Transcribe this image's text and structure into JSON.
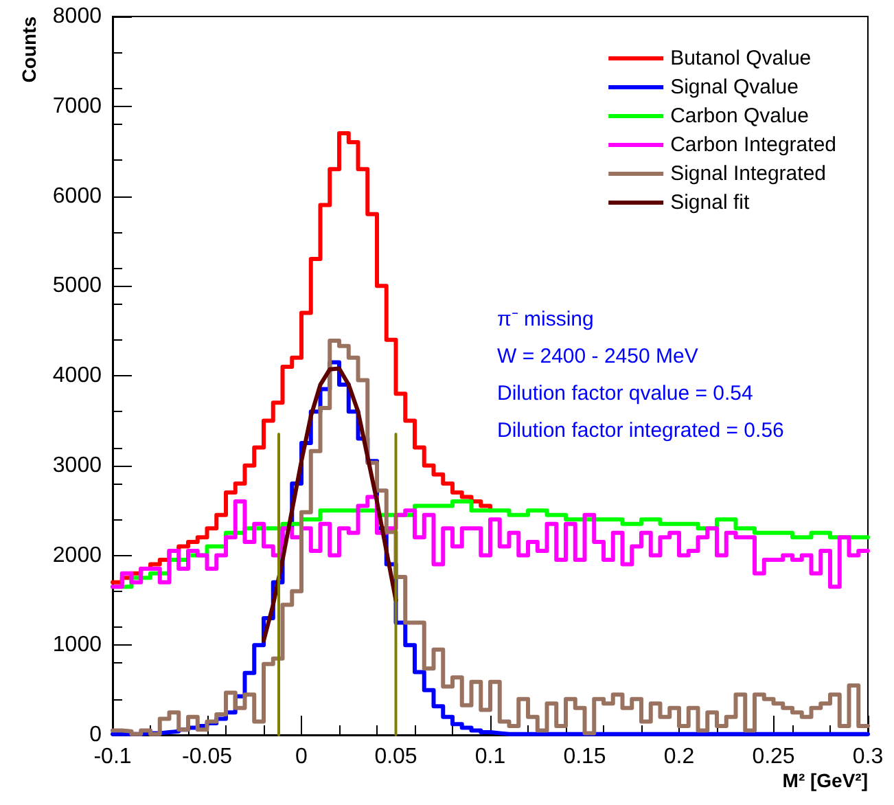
{
  "chart_data": {
    "type": "step",
    "xlabel": "M² [GeV²]",
    "ylabel": "Counts",
    "xlim": [
      -0.1,
      0.3
    ],
    "xticks": [
      -0.1,
      -0.05,
      0,
      0.05,
      0.1,
      0.15,
      0.2,
      0.25,
      0.3
    ],
    "ylim": [
      0,
      8000
    ],
    "yticks": [
      0,
      1000,
      2000,
      3000,
      4000,
      5000,
      6000,
      7000,
      8000
    ],
    "legend": "top right",
    "marker": "none",
    "annotations": [
      "π⁻ missing",
      "W = 2400 - 2450 MeV",
      "Dilution factor qvalue = 0.54",
      "Dilution factor integrated = 0.56"
    ],
    "series": [
      {
        "name": "Butanol Qvalue",
        "color": "#ff0000",
        "x": [
          -0.1,
          -0.095,
          -0.09,
          -0.085,
          -0.08,
          -0.075,
          -0.07,
          -0.065,
          -0.06,
          -0.055,
          -0.05,
          -0.045,
          -0.04,
          -0.035,
          -0.03,
          -0.025,
          -0.02,
          -0.015,
          -0.01,
          -0.005,
          0,
          0.005,
          0.01,
          0.015,
          0.02,
          0.025,
          0.03,
          0.035,
          0.04,
          0.045,
          0.05,
          0.055,
          0.06,
          0.065,
          0.07,
          0.075,
          0.08,
          0.085,
          0.09,
          0.095,
          0.1
        ],
        "values": [
          1700,
          1750,
          1800,
          1850,
          1900,
          1950,
          2050,
          2100,
          2150,
          2200,
          2300,
          2450,
          2700,
          2800,
          3000,
          3200,
          3500,
          3700,
          4100,
          4200,
          4700,
          5300,
          5900,
          6300,
          6700,
          6600,
          6300,
          5800,
          5000,
          4400,
          3800,
          3500,
          3200,
          3000,
          2900,
          2800,
          2700,
          2650,
          2600,
          2550,
          2500
        ]
      },
      {
        "name": "Signal Qvalue",
        "color": "#0000ff",
        "x": [
          -0.1,
          -0.095,
          -0.09,
          -0.085,
          -0.08,
          -0.075,
          -0.07,
          -0.065,
          -0.06,
          -0.055,
          -0.05,
          -0.045,
          -0.04,
          -0.035,
          -0.03,
          -0.025,
          -0.02,
          -0.015,
          -0.01,
          -0.005,
          0,
          0.005,
          0.01,
          0.015,
          0.02,
          0.025,
          0.03,
          0.035,
          0.04,
          0.045,
          0.05,
          0.055,
          0.06,
          0.065,
          0.07,
          0.075,
          0.08,
          0.085,
          0.09,
          0.095,
          0.1,
          0.105,
          0.11,
          0.3
        ],
        "values": [
          10,
          10,
          10,
          20,
          20,
          30,
          40,
          60,
          80,
          100,
          130,
          180,
          250,
          430,
          690,
          1000,
          1300,
          1700,
          2300,
          2800,
          3250,
          3600,
          3850,
          4150,
          3900,
          3600,
          3300,
          3050,
          2300,
          1900,
          1250,
          1000,
          700,
          500,
          320,
          200,
          120,
          80,
          50,
          30,
          20,
          10,
          10,
          10
        ]
      },
      {
        "name": "Carbon Qvalue",
        "color": "#00ff00",
        "x": [
          -0.1,
          -0.09,
          -0.08,
          -0.07,
          -0.06,
          -0.05,
          -0.04,
          -0.03,
          -0.02,
          -0.01,
          0,
          0.01,
          0.02,
          0.03,
          0.04,
          0.05,
          0.06,
          0.07,
          0.08,
          0.09,
          0.1,
          0.11,
          0.12,
          0.13,
          0.14,
          0.15,
          0.16,
          0.17,
          0.18,
          0.19,
          0.2,
          0.21,
          0.22,
          0.23,
          0.24,
          0.25,
          0.26,
          0.27,
          0.28,
          0.29,
          0.3
        ],
        "values": [
          1650,
          1750,
          1800,
          1950,
          2000,
          2100,
          2250,
          2300,
          2300,
          2350,
          2400,
          2500,
          2500,
          2500,
          2450,
          2450,
          2550,
          2550,
          2600,
          2500,
          2500,
          2450,
          2500,
          2450,
          2400,
          2400,
          2400,
          2350,
          2400,
          2350,
          2350,
          2300,
          2400,
          2300,
          2250,
          2250,
          2200,
          2250,
          2200,
          2200,
          2200
        ]
      },
      {
        "name": "Carbon Integrated",
        "color": "#ff00ff",
        "x": [
          -0.1,
          -0.095,
          -0.09,
          -0.085,
          -0.08,
          -0.075,
          -0.07,
          -0.065,
          -0.06,
          -0.055,
          -0.05,
          -0.045,
          -0.04,
          -0.035,
          -0.03,
          -0.025,
          -0.02,
          -0.015,
          -0.01,
          -0.005,
          0,
          0.005,
          0.01,
          0.015,
          0.02,
          0.025,
          0.03,
          0.035,
          0.04,
          0.045,
          0.05,
          0.055,
          0.06,
          0.065,
          0.07,
          0.075,
          0.08,
          0.085,
          0.09,
          0.095,
          0.1,
          0.105,
          0.11,
          0.115,
          0.12,
          0.125,
          0.13,
          0.135,
          0.14,
          0.145,
          0.15,
          0.155,
          0.16,
          0.165,
          0.17,
          0.175,
          0.18,
          0.185,
          0.19,
          0.195,
          0.2,
          0.205,
          0.21,
          0.215,
          0.22,
          0.225,
          0.23,
          0.235,
          0.24,
          0.245,
          0.25,
          0.255,
          0.26,
          0.265,
          0.27,
          0.275,
          0.28,
          0.285,
          0.29,
          0.295,
          0.3
        ],
        "values": [
          1650,
          1800,
          1700,
          1850,
          1850,
          1700,
          2050,
          1850,
          2050,
          2000,
          1850,
          2000,
          2200,
          2600,
          2150,
          2350,
          2100,
          2000,
          2300,
          2200,
          2300,
          2050,
          2350,
          2000,
          2300,
          2250,
          2550,
          2650,
          2250,
          2300,
          2450,
          2500,
          2200,
          2450,
          1900,
          2300,
          2100,
          2300,
          2300,
          2000,
          2400,
          2100,
          2250,
          2000,
          2150,
          2050,
          2350,
          1950,
          2350,
          1950,
          2450,
          2150,
          1950,
          2250,
          1900,
          2100,
          2250,
          2000,
          2200,
          2250,
          2000,
          2050,
          2200,
          2300,
          2000,
          2250,
          2200,
          2200,
          1800,
          1950,
          1950,
          2000,
          1950,
          2000,
          1800,
          2050,
          1650,
          2200,
          2000,
          2050,
          2050
        ]
      },
      {
        "name": "Signal Integrated",
        "color": "#9a7260",
        "x": [
          -0.1,
          -0.095,
          -0.09,
          -0.085,
          -0.08,
          -0.075,
          -0.07,
          -0.065,
          -0.06,
          -0.055,
          -0.05,
          -0.045,
          -0.04,
          -0.035,
          -0.03,
          -0.025,
          -0.02,
          -0.015,
          -0.01,
          -0.005,
          0,
          0.005,
          0.01,
          0.015,
          0.02,
          0.025,
          0.03,
          0.035,
          0.04,
          0.045,
          0.05,
          0.055,
          0.06,
          0.065,
          0.07,
          0.075,
          0.08,
          0.085,
          0.09,
          0.095,
          0.1,
          0.105,
          0.11,
          0.115,
          0.12,
          0.125,
          0.13,
          0.135,
          0.14,
          0.145,
          0.15,
          0.155,
          0.16,
          0.165,
          0.17,
          0.175,
          0.18,
          0.185,
          0.19,
          0.195,
          0.2,
          0.205,
          0.21,
          0.215,
          0.22,
          0.225,
          0.23,
          0.235,
          0.24,
          0.245,
          0.25,
          0.255,
          0.26,
          0.265,
          0.27,
          0.275,
          0.28,
          0.285,
          0.29,
          0.295,
          0.3
        ],
        "values": [
          50,
          40,
          10,
          50,
          10,
          180,
          250,
          60,
          200,
          60,
          150,
          230,
          470,
          300,
          450,
          150,
          790,
          850,
          1450,
          1600,
          2480,
          3160,
          3640,
          4390,
          4330,
          4200,
          3950,
          3030,
          2720,
          2260,
          1760,
          1250,
          1250,
          740,
          950,
          540,
          640,
          330,
          590,
          280,
          590,
          150,
          100,
          400,
          200,
          50,
          350,
          100,
          400,
          300,
          20,
          400,
          350,
          450,
          300,
          400,
          150,
          350,
          200,
          300,
          100,
          300,
          50,
          250,
          100,
          200,
          450,
          50,
          450,
          400,
          350,
          300,
          250,
          200,
          300,
          350,
          450,
          100,
          550,
          100,
          100
        ]
      },
      {
        "name": "Signal fit",
        "type": "line",
        "color": "#5c0000",
        "x": [
          -0.02,
          -0.015,
          -0.01,
          -0.005,
          0,
          0.005,
          0.01,
          0.015,
          0.02,
          0.025,
          0.03,
          0.035,
          0.04,
          0.045,
          0.05
        ],
        "values": [
          1050,
          1450,
          1950,
          2500,
          3050,
          3550,
          3900,
          4070,
          4080,
          3900,
          3600,
          3100,
          2600,
          2050,
          1500
        ]
      },
      {
        "type": "line",
        "color": "#808000",
        "x": [
          -0.012,
          -0.012
        ],
        "values": [
          0,
          3350
        ]
      },
      {
        "type": "line",
        "color": "#808000",
        "x": [
          0.05,
          0.05
        ],
        "values": [
          0,
          3350
        ]
      }
    ]
  }
}
